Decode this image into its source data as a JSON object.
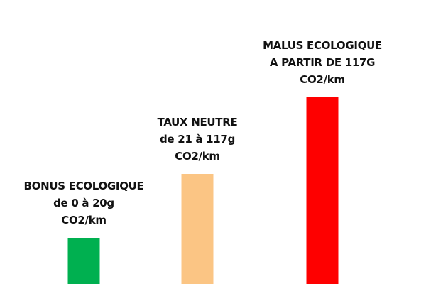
{
  "chart_data": {
    "type": "bar",
    "title": "",
    "xlabel": "",
    "ylabel": "",
    "grid": false,
    "legend": "none",
    "categories": [
      "bonus",
      "neutre",
      "malus"
    ],
    "values": [
      1,
      2,
      3
    ],
    "colors": [
      "#00b050",
      "#fbc584",
      "#fe0000"
    ],
    "bar_labels": [
      [
        "BONUS ECOLOGIQUE",
        "de 0 à 20g",
        "CO2/km"
      ],
      [
        "TAUX NEUTRE",
        "de 21 à 117g",
        "CO2/km"
      ],
      [
        "MALUS ECOLOGIQUE",
        "A PARTIR DE 117G",
        "CO2/km"
      ]
    ]
  }
}
